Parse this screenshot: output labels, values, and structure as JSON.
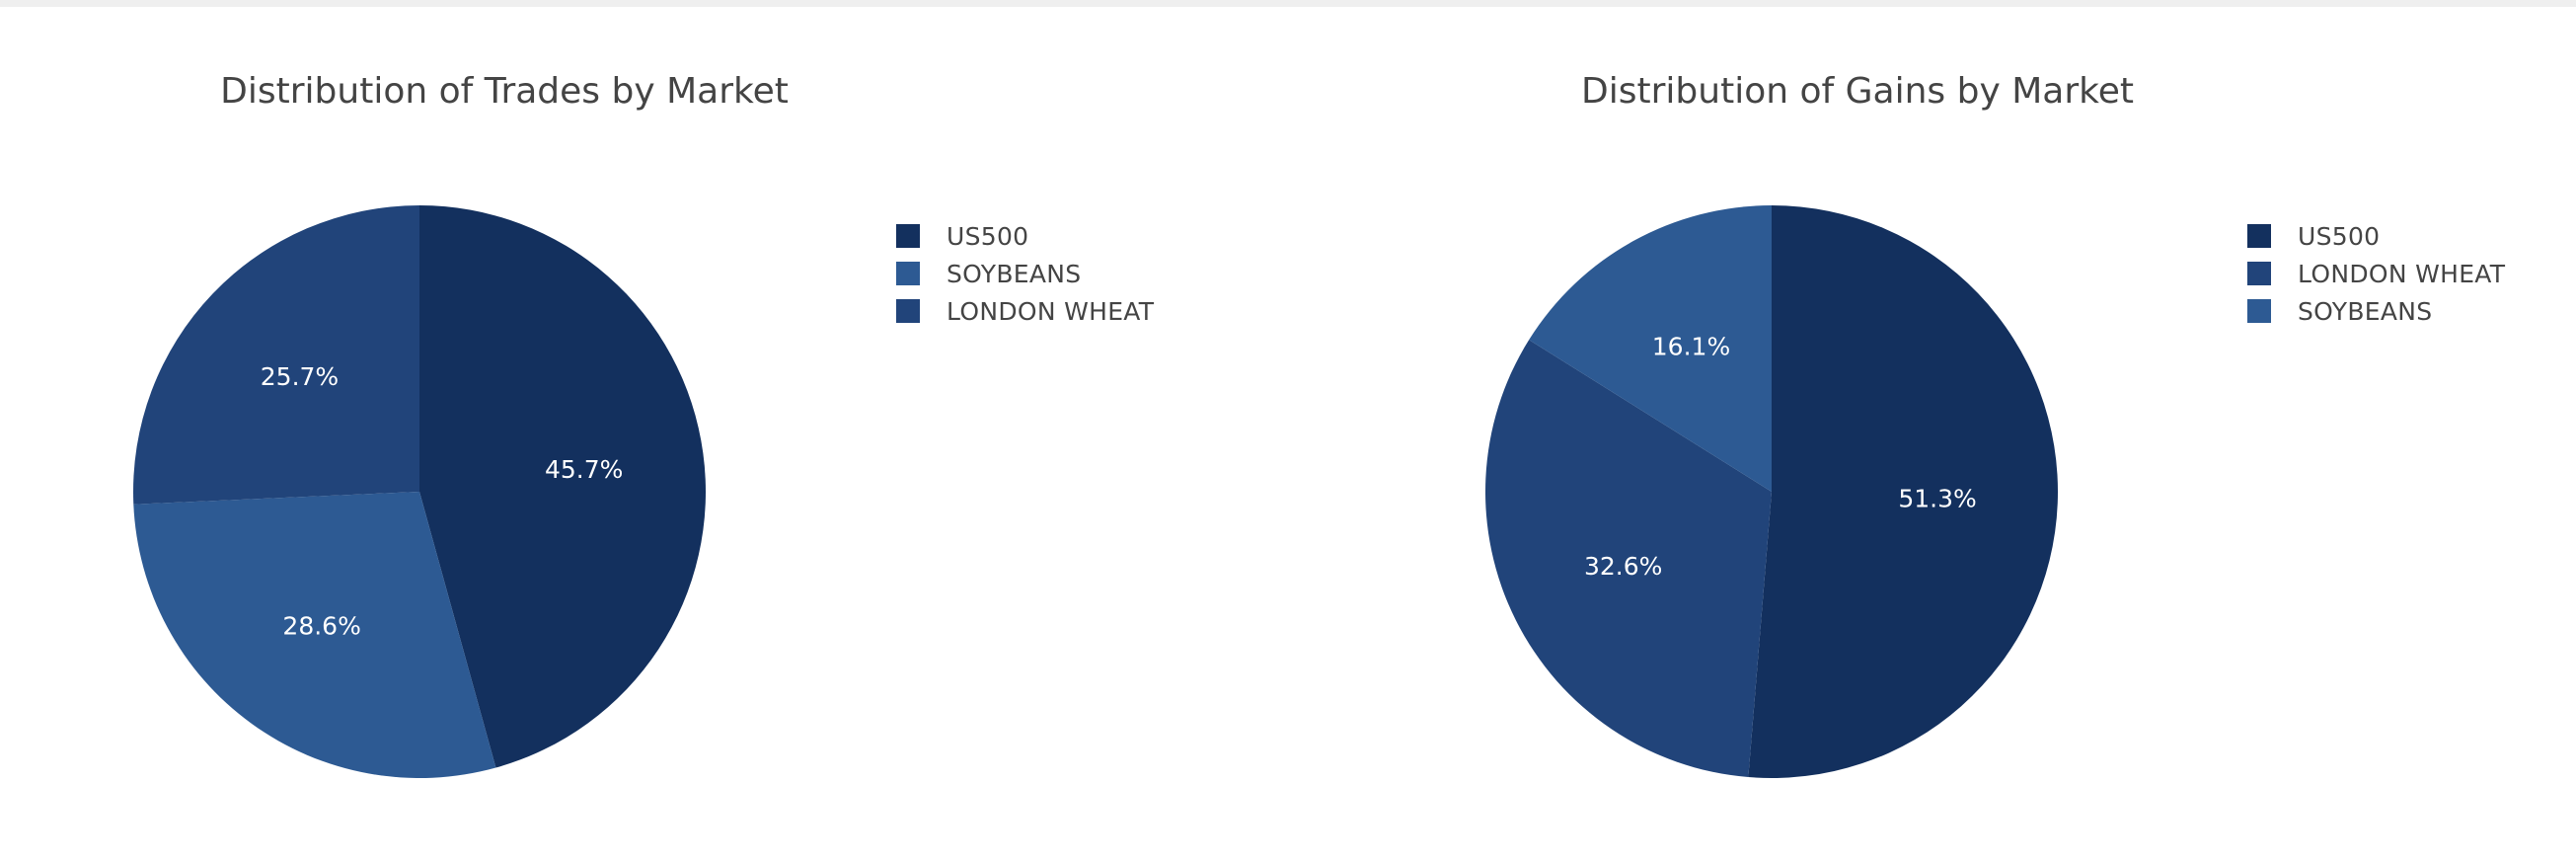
{
  "colors": {
    "us500": "#13305e",
    "london_wheat": "#21447a",
    "soybeans": "#2d5a93",
    "label_text": "#ffffff"
  },
  "chart_data": [
    {
      "type": "pie",
      "title": "Distribution of Trades by Market",
      "labels": [
        "US500",
        "SOYBEANS",
        "LONDON WHEAT"
      ],
      "values": [
        45.7,
        28.6,
        25.7
      ],
      "text": [
        "45.7%",
        "28.6%",
        "25.7%"
      ],
      "slice_colors": [
        "#13305e",
        "#2d5a93",
        "#21447a"
      ],
      "legend": {
        "position": "top-right",
        "items": [
          {
            "label": "US500",
            "color": "#13305e"
          },
          {
            "label": "SOYBEANS",
            "color": "#2d5a93"
          },
          {
            "label": "LONDON WHEAT",
            "color": "#21447a"
          }
        ]
      }
    },
    {
      "type": "pie",
      "title": "Distribution of Gains by Market",
      "labels": [
        "US500",
        "LONDON WHEAT",
        "SOYBEANS"
      ],
      "values": [
        51.3,
        32.6,
        16.1
      ],
      "text": [
        "51.3%",
        "32.6%",
        "16.1%"
      ],
      "slice_colors": [
        "#13305e",
        "#21447a",
        "#2d5a93"
      ],
      "legend": {
        "position": "top-right",
        "items": [
          {
            "label": "US500",
            "color": "#13305e"
          },
          {
            "label": "LONDON WHEAT",
            "color": "#21447a"
          },
          {
            "label": "SOYBEANS",
            "color": "#2d5a93"
          }
        ]
      }
    }
  ]
}
